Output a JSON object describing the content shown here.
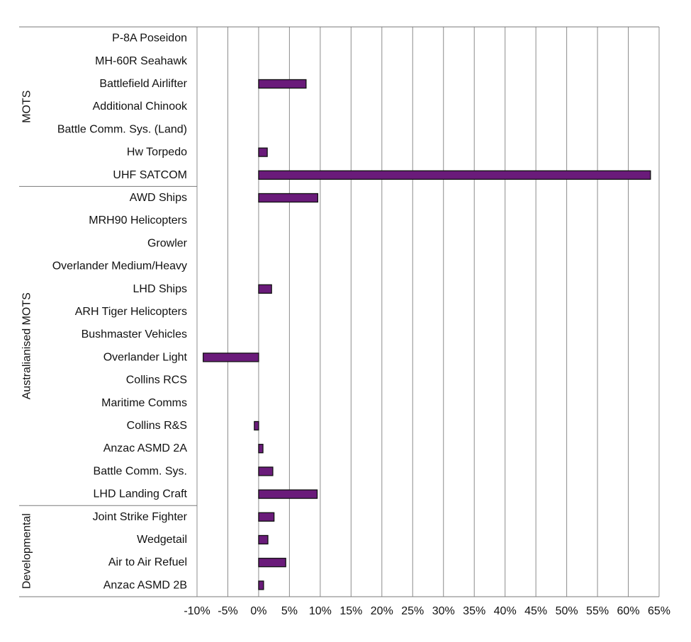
{
  "chart_data": {
    "type": "bar",
    "orientation": "horizontal",
    "title": "",
    "xlabel": "",
    "ylabel": "",
    "xlim": [
      -10,
      65
    ],
    "x_ticks": [
      -10,
      -5,
      0,
      5,
      10,
      15,
      20,
      25,
      30,
      35,
      40,
      45,
      50,
      55,
      60,
      65
    ],
    "x_tick_labels": [
      "-10%",
      "-5%",
      "0%",
      "5%",
      "10%",
      "15%",
      "20%",
      "25%",
      "30%",
      "35%",
      "40%",
      "45%",
      "50%",
      "55%",
      "60%",
      "65%"
    ],
    "grid": "vertical",
    "bar_color": "#6a1b7a",
    "groups": [
      {
        "name": "MOTS",
        "items": [
          {
            "label": "P-8A Poseidon",
            "value": null
          },
          {
            "label": "MH-60R Seahawk",
            "value": null
          },
          {
            "label": "Battlefield Airlifter",
            "value": 7.7
          },
          {
            "label": "Additional Chinook",
            "value": null
          },
          {
            "label": "Battle Comm. Sys. (Land)",
            "value": null
          },
          {
            "label": "Hw Torpedo",
            "value": 1.4
          },
          {
            "label": "UHF SATCOM",
            "value": 63.6
          }
        ]
      },
      {
        "name": "Australianised MOTS",
        "items": [
          {
            "label": "AWD Ships",
            "value": 9.6
          },
          {
            "label": "MRH90 Helicopters",
            "value": null
          },
          {
            "label": "Growler",
            "value": null
          },
          {
            "label": "Overlander Medium/Heavy",
            "value": null
          },
          {
            "label": "LHD Ships",
            "value": 2.1
          },
          {
            "label": "ARH Tiger Helicopters",
            "value": null
          },
          {
            "label": "Bushmaster Vehicles",
            "value": null
          },
          {
            "label": "Overlander Light",
            "value": -9.0
          },
          {
            "label": "Collins RCS",
            "value": null
          },
          {
            "label": "Maritime Comms",
            "value": null
          },
          {
            "label": "Collins R&S",
            "value": -0.7
          },
          {
            "label": "Anzac ASMD 2A",
            "value": 0.7
          },
          {
            "label": "Battle Comm. Sys.",
            "value": 2.3
          },
          {
            "label": "LHD Landing Craft",
            "value": 9.5
          }
        ]
      },
      {
        "name": "Developmental",
        "items": [
          {
            "label": "Joint Strike Fighter",
            "value": 2.5
          },
          {
            "label": "Wedgetail",
            "value": 1.5
          },
          {
            "label": "Air to Air Refuel",
            "value": 4.4
          },
          {
            "label": "Anzac ASMD 2B",
            "value": 0.8
          }
        ]
      }
    ]
  }
}
